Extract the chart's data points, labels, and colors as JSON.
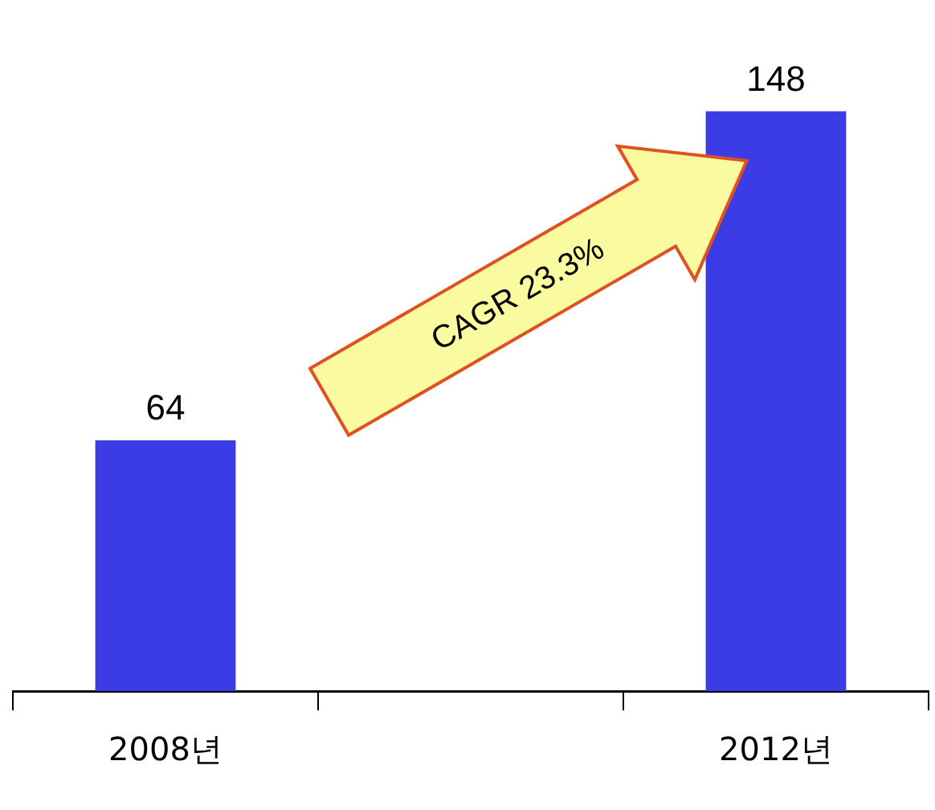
{
  "chart_data": {
    "type": "bar",
    "categories": [
      "2008년",
      null,
      "2012년"
    ],
    "values": [
      64,
      null,
      148
    ],
    "color": "#3c3ce6",
    "data_labels": true,
    "grid": false,
    "legend": false,
    "tick_labels": "x",
    "annotations": [
      "CAGR 23.3%"
    ]
  }
}
